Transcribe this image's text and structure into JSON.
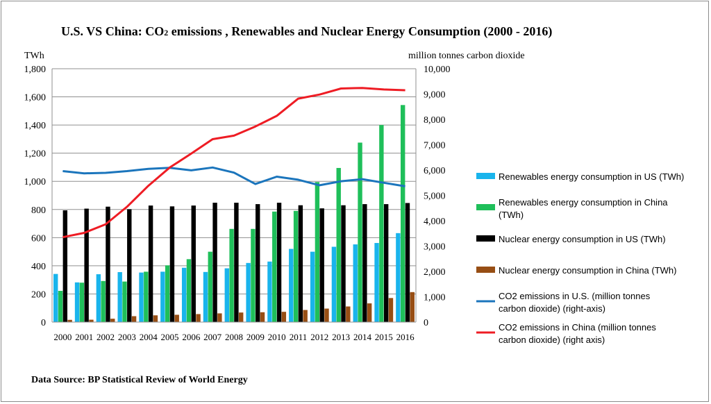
{
  "title_prefix": "U.S. VS China: CO",
  "title_sub": "2",
  "title_suffix": " emissions , Renewables and Nuclear Energy Consumption (2000 - 2016)",
  "source": "Data Source: BP Statistical Review of World  Energy",
  "chart_data": {
    "type": "bar+line",
    "title": "U.S. VS China: CO2 emissions , Renewables and Nuclear Energy Consumption (2000 - 2016)",
    "left_axis_label": "TWh",
    "right_axis_label": "million tonnes carbon dioxide",
    "ylim_left": [
      0,
      1800
    ],
    "ylim_right": [
      0,
      10000
    ],
    "left_ticks": [
      "0",
      "200",
      "400",
      "600",
      "800",
      "1,000",
      "1,200",
      "1,400",
      "1,600",
      "1,800"
    ],
    "right_ticks": [
      "0",
      "1,000",
      "2,000",
      "3,000",
      "4,000",
      "5,000",
      "6,000",
      "7,000",
      "8,000",
      "9,000",
      "10,000"
    ],
    "categories": [
      "2000",
      "2001",
      "2002",
      "2003",
      "2004",
      "2005",
      "2006",
      "2007",
      "2008",
      "2009",
      "2010",
      "2011",
      "2012",
      "2013",
      "2014",
      "2015",
      "2016"
    ],
    "grid": true,
    "legend_position": "right",
    "bar_series": [
      {
        "name": "Renewables energy consumption in US (TWh)",
        "color": "#19b4ec",
        "values": [
          342,
          282,
          340,
          355,
          352,
          358,
          386,
          356,
          382,
          420,
          430,
          520,
          500,
          535,
          552,
          562,
          632
        ]
      },
      {
        "name": "Renewables energy consumption in China (TWh)",
        "color": "#1fbf5a",
        "values": [
          222,
          280,
          292,
          288,
          358,
          403,
          447,
          500,
          662,
          662,
          785,
          790,
          995,
          1095,
          1275,
          1400,
          1542
        ]
      },
      {
        "name": "Nuclear energy consumption in US (TWh)",
        "color": "#000000",
        "values": [
          794,
          806,
          820,
          802,
          828,
          822,
          828,
          848,
          848,
          838,
          848,
          830,
          808,
          830,
          838,
          838,
          846
        ]
      },
      {
        "name": "Nuclear energy consumption in China (TWh)",
        "color": "#974e14",
        "values": [
          16,
          17,
          24,
          42,
          48,
          52,
          57,
          62,
          68,
          70,
          73,
          86,
          96,
          111,
          133,
          171,
          213
        ]
      }
    ],
    "line_series": [
      {
        "name": "CO2 emissions in U.S. (million tonnes carbon dioxide) (right-axis)",
        "color": "#1b75bc",
        "values": [
          5960,
          5870,
          5890,
          5960,
          6050,
          6090,
          5990,
          6100,
          5900,
          5450,
          5740,
          5620,
          5400,
          5560,
          5640,
          5500,
          5360
        ]
      },
      {
        "name": "CO2 emissions in China (million tonnes carbon dioxide) (right axis)",
        "color": "#ee1c24",
        "values": [
          3350,
          3520,
          3860,
          4550,
          5380,
          6100,
          6650,
          7220,
          7360,
          7720,
          8140,
          8820,
          8980,
          9220,
          9240,
          9180,
          9150
        ]
      }
    ]
  }
}
